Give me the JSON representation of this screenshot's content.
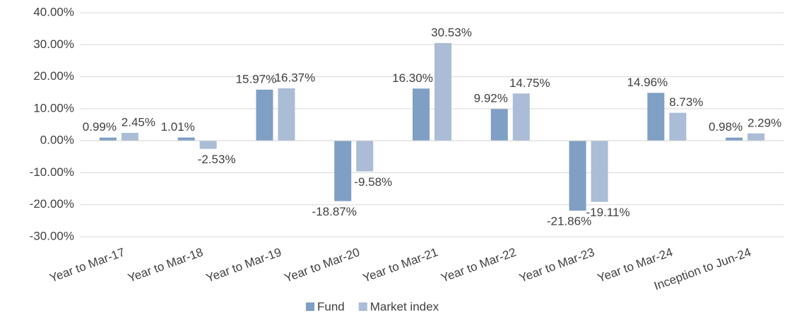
{
  "chart_data": {
    "type": "bar",
    "categories": [
      "Year to Mar-17",
      "Year to Mar-18",
      "Year to Mar-19",
      "Year to Mar-20",
      "Year to Mar-21",
      "Year to Mar-22",
      "Year to Mar-23",
      "Year to Mar-24",
      "Inception to Jun-24"
    ],
    "series": [
      {
        "name": "Fund",
        "color": "#7f9fc4",
        "values": [
          0.99,
          1.01,
          15.97,
          -18.87,
          16.3,
          9.92,
          -21.86,
          14.96,
          0.98
        ],
        "value_labels": [
          "0.99%",
          "1.01%",
          "15.97%",
          "-18.87%",
          "16.30%",
          "9.92%",
          "-21.86%",
          "14.96%",
          "0.98%"
        ]
      },
      {
        "name": "Market index",
        "color": "#aabcd6",
        "values": [
          2.45,
          -2.53,
          16.37,
          -9.58,
          30.53,
          14.75,
          -19.11,
          8.73,
          2.29
        ],
        "value_labels": [
          "2.45%",
          "-2.53%",
          "16.37%",
          "-9.58%",
          "30.53%",
          "14.75%",
          "-19.11%",
          "8.73%",
          "2.29%"
        ]
      }
    ],
    "ylim": [
      -30,
      40
    ],
    "yticks": [
      {
        "value": -30,
        "label": "-30.00%"
      },
      {
        "value": -20,
        "label": "-20.00%"
      },
      {
        "value": -10,
        "label": "-10.00%"
      },
      {
        "value": 0,
        "label": "0.00%"
      },
      {
        "value": 10,
        "label": "10.00%"
      },
      {
        "value": 20,
        "label": "20.00%"
      },
      {
        "value": 30,
        "label": "30.00%"
      },
      {
        "value": 40,
        "label": "40.00%"
      }
    ],
    "grid": true,
    "legend": "bottom"
  }
}
